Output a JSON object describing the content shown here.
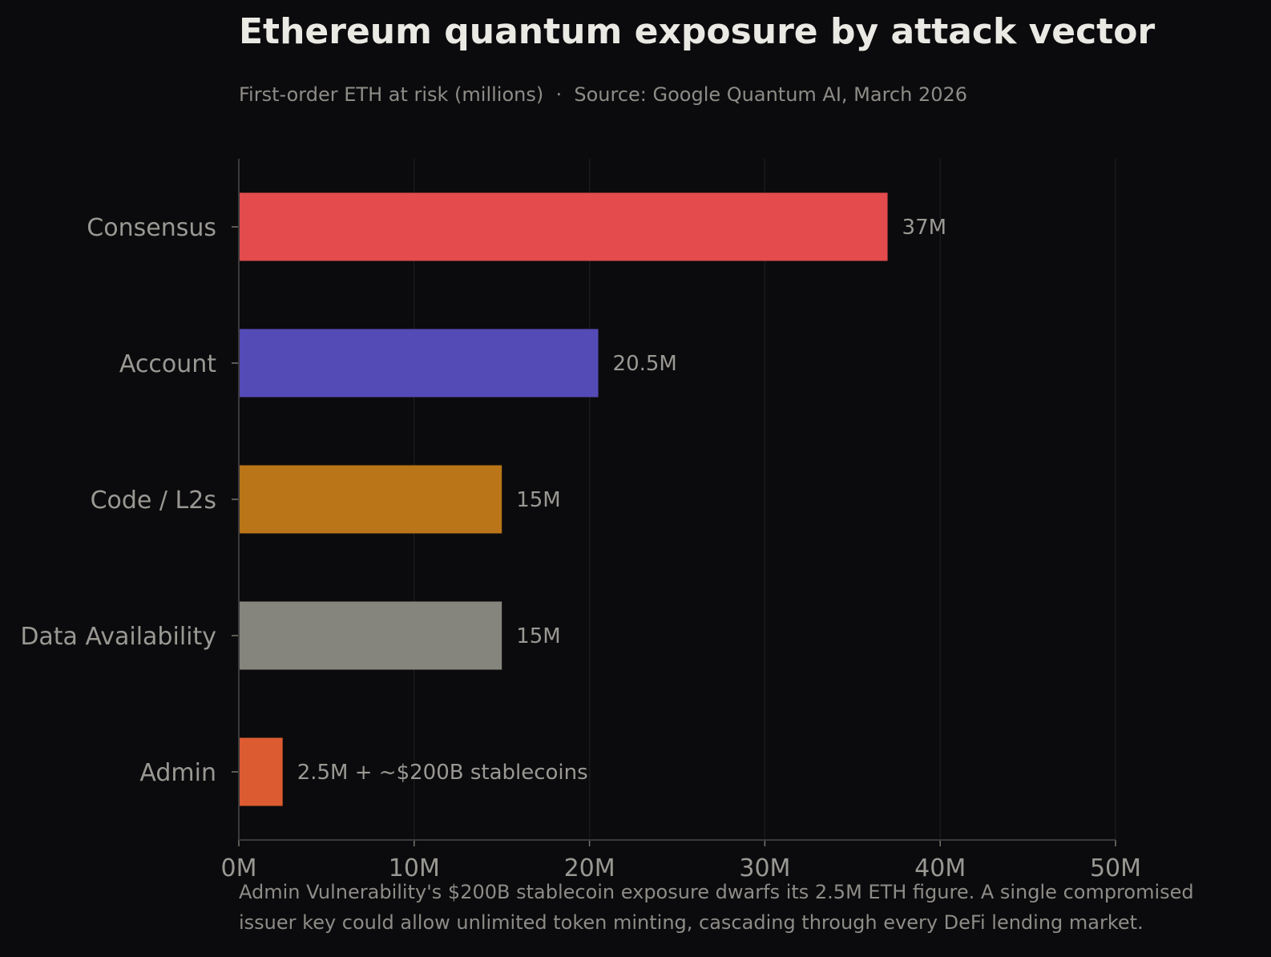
{
  "chart_data": {
    "type": "bar",
    "orientation": "horizontal",
    "title": "Ethereum quantum exposure by attack vector",
    "subtitle": "First-order ETH at risk (millions)  ·  Source: Google Quantum AI, March 2026",
    "categories": [
      "Consensus",
      "Account",
      "Code / L2s",
      "Data Availability",
      "Admin"
    ],
    "values": [
      37,
      20.5,
      15,
      15,
      2.5
    ],
    "data_labels": [
      "37M",
      "20.5M",
      "15M",
      "15M",
      "2.5M + ~$200B stablecoins"
    ],
    "colors": [
      "#e34b4c",
      "#544bb6",
      "#b97518",
      "#86857d",
      "#dc5b31"
    ],
    "xlabel": "",
    "ylabel": "",
    "xlim": [
      0,
      50
    ],
    "xticks": [
      0,
      10,
      20,
      30,
      40,
      50
    ],
    "xtick_labels": [
      "0M",
      "10M",
      "20M",
      "30M",
      "40M",
      "50M"
    ],
    "grid": "vertical, faint",
    "annotation_lines": [
      "Admin Vulnerability's $200B stablecoin exposure dwarfs its 2.5M ETH figure. A single compromised",
      "issuer key could allow unlimited token minting, cascading through every DeFi lending market."
    ]
  }
}
